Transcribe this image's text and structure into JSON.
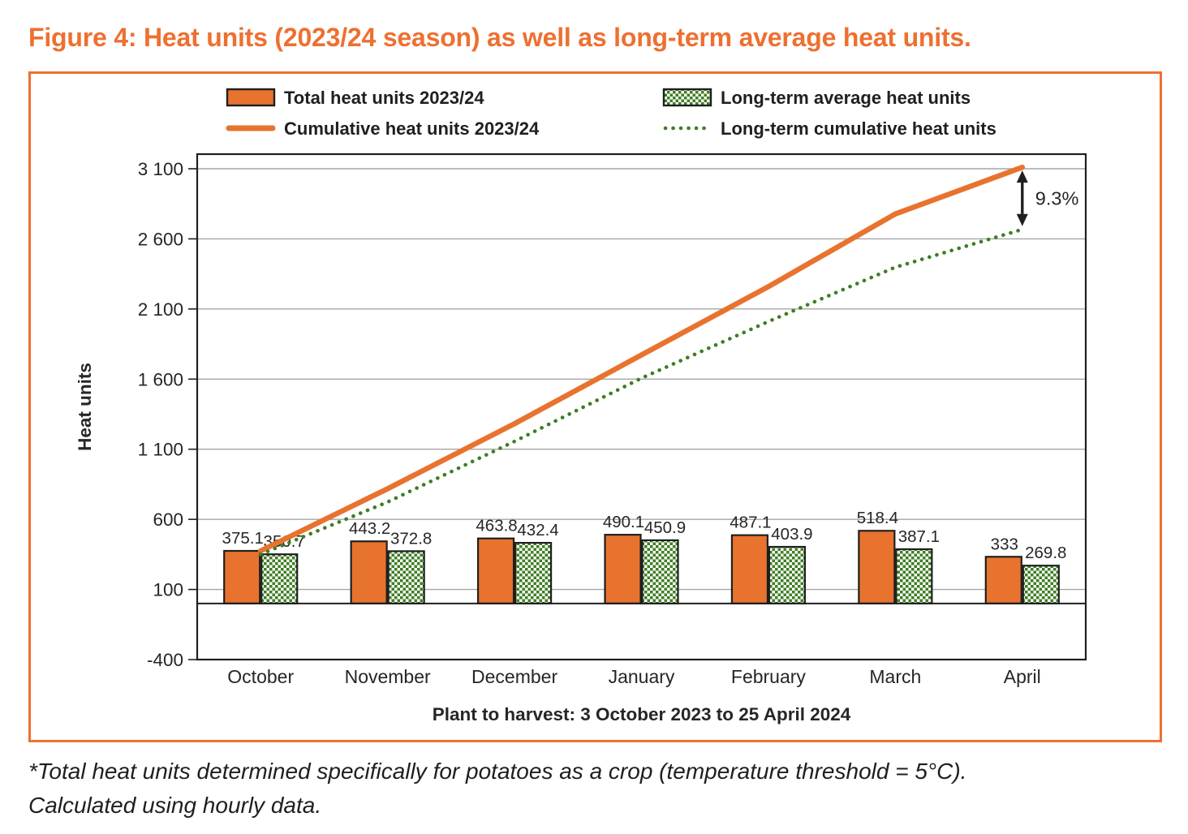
{
  "title": "Figure 4: Heat units (2023/24 season) as well as long-term average heat units.",
  "footnote_lines": [
    "*Total heat units determined specifically for potatoes as a crop (temperature threshold = 5°C).",
    "Calculated using hourly data."
  ],
  "chart_data": {
    "type": "combo-bar-line",
    "categories": [
      "October",
      "November",
      "December",
      "January",
      "February",
      "March",
      "April"
    ],
    "series": [
      {
        "name": "Total heat units 2023/24",
        "type": "bar",
        "style": "bar-solid",
        "values": [
          375.1,
          443.2,
          463.8,
          490.1,
          487.1,
          518.4,
          333
        ],
        "labels": [
          "375.1",
          "443.2",
          "463.8",
          "490.1",
          "487.1",
          "518.4",
          "333"
        ]
      },
      {
        "name": "Long-term average heat units",
        "type": "bar",
        "style": "bar-checker",
        "values": [
          350.7,
          372.8,
          432.4,
          450.9,
          403.9,
          387.1,
          269.8
        ],
        "labels": [
          "350.7",
          "372.8",
          "432.4",
          "450.9",
          "403.9",
          "387.1",
          "269.8"
        ]
      },
      {
        "name": "Cumulative heat units 2023/24",
        "type": "line",
        "style": "line-solid",
        "values": [
          375.1,
          818.3,
          1282.1,
          1772.2,
          2259.3,
          2777.7,
          3110.7
        ]
      },
      {
        "name": "Long-term cumulative heat units",
        "type": "line",
        "style": "line-dotted",
        "values": [
          350.7,
          723.5,
          1155.9,
          1606.8,
          2010.7,
          2397.8,
          2667.6
        ]
      }
    ],
    "ylabel": "Heat units",
    "xlabel": "Plant to harvest: 3 October 2023 to 25 April 2024",
    "ylim": [
      -400,
      3100
    ],
    "yticks": [
      {
        "value": -400,
        "label": "-400"
      },
      {
        "value": 100,
        "label": "100"
      },
      {
        "value": 600,
        "label": "600"
      },
      {
        "value": 1100,
        "label": "1 100"
      },
      {
        "value": 1600,
        "label": "1 600"
      },
      {
        "value": 2100,
        "label": "2 100"
      },
      {
        "value": 2600,
        "label": "2 600"
      },
      {
        "value": 3100,
        "label": "3 100"
      }
    ],
    "grid": "horizontal",
    "legend_position": "top",
    "annotation": {
      "text": "9.3%"
    },
    "colors": {
      "accent_orange": "#ED7031",
      "chart_orange": "#E8732E",
      "chart_green": "#3D7E23",
      "gridline": "#A6A6A6",
      "axis_black": "#1f1f1f",
      "text": "#262626"
    }
  }
}
